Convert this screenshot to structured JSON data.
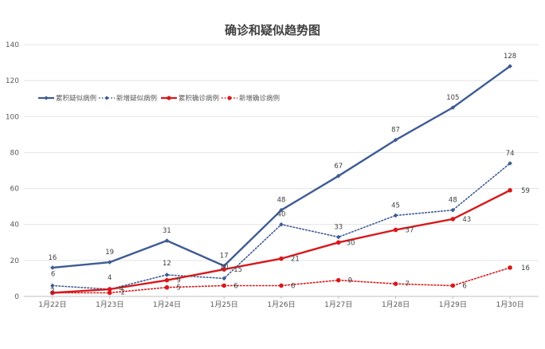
{
  "chart_data": {
    "type": "line",
    "title": "确诊和疑似趋势图",
    "xlabel": "",
    "ylabel": "",
    "ylim": [
      0,
      140
    ],
    "yticks": [
      0,
      20,
      40,
      60,
      80,
      100,
      120,
      140
    ],
    "grid": true,
    "legend": "top-left",
    "categories": [
      "1月22日",
      "1月23日",
      "1月24日",
      "1月25日",
      "1月26日",
      "1月27日",
      "1月28日",
      "1月29日",
      "1月30日"
    ],
    "series": [
      {
        "name": "累积疑似病例",
        "values": [
          16,
          19,
          31,
          17,
          48,
          67,
          87,
          105,
          128
        ],
        "color": "#3E5B94",
        "style": "solid",
        "marker": "diamond"
      },
      {
        "name": "新增疑似病例",
        "values": [
          6,
          4,
          12,
          10,
          40,
          33,
          45,
          48,
          74
        ],
        "color": "#3E5B94",
        "style": "dotted",
        "marker": "diamond"
      },
      {
        "name": "累积确诊病例",
        "values": [
          2,
          4,
          9,
          15,
          21,
          30,
          37,
          43,
          59
        ],
        "color": "#D7191C",
        "style": "solid",
        "marker": "circle"
      },
      {
        "name": "新增确诊病例",
        "values": [
          2,
          2,
          5,
          6,
          6,
          9,
          7,
          6,
          16
        ],
        "color": "#D7191C",
        "style": "dotted",
        "marker": "circle"
      }
    ]
  }
}
